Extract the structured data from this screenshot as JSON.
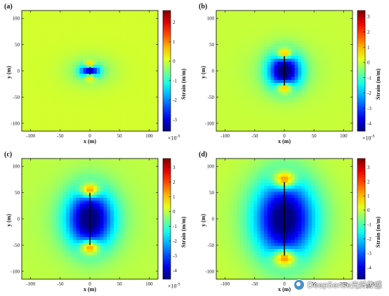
{
  "chart_data": [
    {
      "type": "heatmap",
      "panel_label": "(a)",
      "xlabel": "x (m)",
      "ylabel": "y (m)",
      "colorbar_label": "Strain (m/m)",
      "colorbar_multiplier": "×10",
      "colorbar_exponent": "-5",
      "xlim": [
        -115,
        115
      ],
      "ylim": [
        -115,
        115
      ],
      "x_ticks": [
        "-100",
        "-50",
        "0",
        "50",
        "100"
      ],
      "y_ticks": [
        "100",
        "50",
        "0",
        "-50",
        "-100"
      ],
      "clim": [
        -3.6,
        2.6
      ],
      "colorbar_ticks": [
        "2",
        "1",
        "0",
        "-1",
        "-2",
        "-3"
      ],
      "fracture_half_length": 7,
      "strain_min": -3.4,
      "strain_tip_max": 2.4
    },
    {
      "type": "heatmap",
      "panel_label": "(b)",
      "xlabel": "x (m)",
      "ylabel": "y (m)",
      "colorbar_label": "Strain (m/m)",
      "colorbar_multiplier": "×10",
      "colorbar_exponent": "-5",
      "xlim": [
        -115,
        115
      ],
      "ylim": [
        -115,
        115
      ],
      "x_ticks": [
        "-100",
        "-50",
        "0",
        "50",
        "100"
      ],
      "y_ticks": [
        "100",
        "50",
        "0",
        "-50",
        "-100"
      ],
      "clim": [
        -4.5,
        3.4
      ],
      "colorbar_ticks": [
        "3",
        "2",
        "1",
        "0",
        "-1",
        "-2",
        "-3",
        "-4"
      ],
      "fracture_half_length": 28,
      "strain_min": -4.3,
      "strain_tip_max": 3.0
    },
    {
      "type": "heatmap",
      "panel_label": "(c)",
      "xlabel": "x (m)",
      "ylabel": "y (m)",
      "colorbar_label": "Strain (m/m)",
      "colorbar_multiplier": "×10",
      "colorbar_exponent": "-5",
      "xlim": [
        -115,
        115
      ],
      "ylim": [
        -115,
        115
      ],
      "x_ticks": [
        "-100",
        "-50",
        "0",
        "50",
        "100"
      ],
      "y_ticks": [
        "100",
        "50",
        "0",
        "-50",
        "-100"
      ],
      "clim": [
        -4.6,
        3.6
      ],
      "colorbar_ticks": [
        "3",
        "2",
        "1",
        "0",
        "-1",
        "-2",
        "-3",
        "-4"
      ],
      "fracture_half_length": 50,
      "strain_min": -4.4,
      "strain_tip_max": 3.2
    },
    {
      "type": "heatmap",
      "panel_label": "(d)",
      "xlabel": "x (m)",
      "ylabel": "y (m)",
      "colorbar_label": "Strain (m/m)",
      "colorbar_multiplier": "×10",
      "colorbar_exponent": "-5",
      "xlim": [
        -115,
        115
      ],
      "ylim": [
        -115,
        115
      ],
      "x_ticks": [
        "-100",
        "-50",
        "0",
        "50",
        "100"
      ],
      "y_ticks": [
        "100",
        "50",
        "0",
        "-50",
        "-100"
      ],
      "clim": [
        -4.8,
        3.6
      ],
      "colorbar_ticks": [
        "3",
        "2",
        "1",
        "0",
        "-1",
        "-2",
        "-3",
        "-4"
      ],
      "fracture_half_length": 70,
      "strain_min": -4.6,
      "strain_tip_max": 3.3
    }
  ],
  "watermark": {
    "text": "DeepSense光纤传感",
    "icon": "wechat-logo-icon"
  }
}
